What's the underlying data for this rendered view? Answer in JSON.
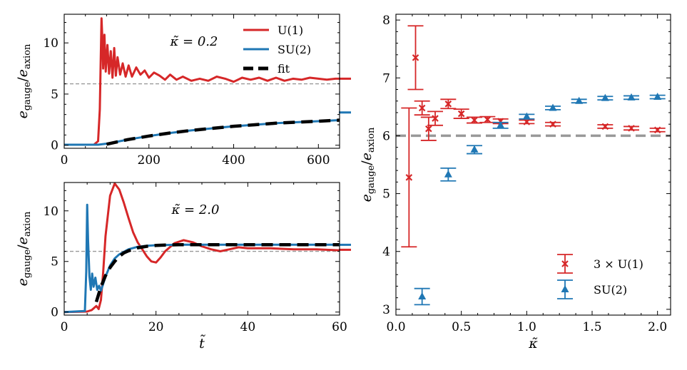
{
  "chart_data": [
    {
      "id": "top-left",
      "type": "line",
      "annotation": "κ̃ = 0.2",
      "xlabel": "",
      "ylabel": "e_gauge / e_axion",
      "xlim": [
        0,
        650
      ],
      "ylim": [
        -0.3,
        12.8
      ],
      "xticks": [
        0,
        200,
        400,
        600
      ],
      "yticks": [
        0,
        5,
        10
      ],
      "reference_line": 6,
      "legend": {
        "placement": "top-right",
        "entries": [
          "U(1)",
          "SU(2)",
          "fit"
        ]
      },
      "series": [
        {
          "name": "U(1)",
          "color": "#d62728",
          "x": [
            0,
            70,
            80,
            84,
            86,
            88,
            90,
            92,
            95,
            98,
            102,
            106,
            110,
            114,
            118,
            122,
            126,
            132,
            138,
            145,
            152,
            160,
            170,
            180,
            190,
            200,
            212,
            225,
            238,
            250,
            265,
            280,
            300,
            320,
            340,
            360,
            380,
            400,
            420,
            440,
            460,
            480,
            500,
            520,
            540,
            560,
            580,
            600,
            620,
            640,
            650
          ],
          "y": [
            0.05,
            0.05,
            0.4,
            3.5,
            8.0,
            12.4,
            10.5,
            7.5,
            10.8,
            7.2,
            9.8,
            7.0,
            9.2,
            6.6,
            9.5,
            6.8,
            8.6,
            6.9,
            8.0,
            6.7,
            7.8,
            6.7,
            7.6,
            6.9,
            7.3,
            6.6,
            7.1,
            6.8,
            6.4,
            6.9,
            6.4,
            6.7,
            6.3,
            6.5,
            6.3,
            6.7,
            6.5,
            6.2,
            6.6,
            6.4,
            6.6,
            6.3,
            6.6,
            6.3,
            6.5,
            6.4,
            6.6,
            6.5,
            6.4,
            6.5,
            6.5
          ]
        },
        {
          "name": "SU(2)",
          "color": "#1f77b4",
          "x": [
            0,
            80,
            100,
            120,
            150,
            200,
            250,
            300,
            350,
            400,
            450,
            500,
            550,
            600,
            650
          ],
          "y": [
            0.05,
            0.05,
            0.15,
            0.3,
            0.55,
            0.9,
            1.2,
            1.45,
            1.65,
            1.85,
            2.0,
            2.15,
            2.25,
            2.35,
            2.45
          ]
        },
        {
          "name": "fit",
          "color": "#000000",
          "x": [
            100,
            120,
            150,
            200,
            250,
            300,
            350,
            400,
            450,
            500,
            550,
            600,
            650
          ],
          "y": [
            0.1,
            0.28,
            0.55,
            0.9,
            1.2,
            1.45,
            1.65,
            1.85,
            2.0,
            2.15,
            2.25,
            2.35,
            2.45
          ]
        }
      ],
      "edge_markers": [
        {
          "series": "U(1)",
          "y": 6.5
        },
        {
          "series": "SU(2)",
          "y": 3.2
        }
      ]
    },
    {
      "id": "bottom-left",
      "type": "line",
      "annotation": "κ̃ = 2.0",
      "xlabel": "t̃",
      "ylabel": "e_gauge / e_axion",
      "xlim": [
        0,
        60
      ],
      "ylim": [
        -0.3,
        12.8
      ],
      "xticks": [
        0,
        20,
        40,
        60
      ],
      "yticks": [
        0,
        5,
        10
      ],
      "reference_line": 6,
      "series": [
        {
          "name": "U(1)",
          "color": "#d62728",
          "x": [
            0,
            5,
            6,
            7,
            7.5,
            8,
            8.5,
            9,
            10,
            11,
            12,
            13,
            14,
            15,
            16,
            17,
            18,
            19,
            20,
            21,
            22,
            24,
            26,
            28,
            30,
            32,
            34,
            36,
            38,
            40,
            45,
            50,
            55,
            60
          ],
          "y": [
            0,
            0.05,
            0.2,
            0.6,
            0.3,
            1.2,
            4.0,
            7.5,
            11.5,
            12.7,
            12.1,
            10.8,
            9.3,
            7.9,
            6.9,
            6.2,
            5.5,
            5.0,
            4.9,
            5.4,
            6.0,
            6.8,
            7.1,
            6.9,
            6.5,
            6.2,
            6.0,
            6.2,
            6.4,
            6.3,
            6.3,
            6.2,
            6.2,
            6.1
          ]
        },
        {
          "name": "SU(2)",
          "color": "#1f77b4",
          "x": [
            0,
            4.5,
            4.8,
            5.0,
            5.2,
            5.5,
            5.8,
            6.1,
            6.4,
            6.8,
            7.2,
            7.6,
            8.0,
            8.5,
            9,
            10,
            11,
            12,
            14,
            16,
            18,
            20,
            25,
            30,
            40,
            50,
            60
          ],
          "y": [
            0,
            0.1,
            4.0,
            10.6,
            7.0,
            3.5,
            2.2,
            3.8,
            2.5,
            3.4,
            2.2,
            2.6,
            2.1,
            2.8,
            3.5,
            4.6,
            5.3,
            5.7,
            6.2,
            6.45,
            6.55,
            6.6,
            6.65,
            6.65,
            6.65,
            6.65,
            6.65
          ]
        },
        {
          "name": "fit",
          "color": "#000000",
          "x": [
            7,
            8,
            9,
            10,
            11,
            12,
            13,
            14,
            16,
            18,
            20,
            22,
            25,
            30,
            40,
            50,
            60
          ],
          "y": [
            1.0,
            2.5,
            3.6,
            4.4,
            5.0,
            5.5,
            5.85,
            6.05,
            6.35,
            6.5,
            6.58,
            6.62,
            6.65,
            6.65,
            6.65,
            6.65,
            6.65
          ]
        }
      ],
      "edge_markers": [
        {
          "series": "SU(2)",
          "y": 6.65
        },
        {
          "series": "U(1)",
          "y": 6.15
        }
      ]
    },
    {
      "id": "right",
      "type": "scatter",
      "xlabel": "κ̃",
      "ylabel": "e_gauge / e_axion",
      "xlim": [
        0,
        2.1
      ],
      "ylim": [
        2.9,
        8.1
      ],
      "xticks": [
        "0.0",
        "0.5",
        "1.0",
        "1.5",
        "2.0"
      ],
      "yticks": [
        3,
        4,
        5,
        6,
        7,
        8
      ],
      "reference_line": 6,
      "legend": {
        "placement": "bottom-right",
        "entries": [
          "3 × U(1)",
          "SU(2)"
        ]
      },
      "series": [
        {
          "name": "3 × U(1)",
          "color": "#d62728",
          "marker": "x",
          "x": [
            0.1,
            0.15,
            0.2,
            0.25,
            0.3,
            0.4,
            0.5,
            0.6,
            0.7,
            0.8,
            1.0,
            1.2,
            1.6,
            1.8,
            2.0
          ],
          "y": [
            5.28,
            7.35,
            6.48,
            6.12,
            6.3,
            6.55,
            6.38,
            6.27,
            6.28,
            6.25,
            6.24,
            6.2,
            6.16,
            6.13,
            6.1
          ],
          "err": [
            1.2,
            0.55,
            0.12,
            0.2,
            0.12,
            0.08,
            0.08,
            0.05,
            0.05,
            0.04,
            0.03,
            0.03,
            0.03,
            0.03,
            0.03
          ]
        },
        {
          "name": "SU(2)",
          "color": "#1f77b4",
          "marker": "^",
          "x": [
            0.2,
            0.4,
            0.6,
            0.8,
            1.0,
            1.2,
            1.4,
            1.6,
            1.8,
            2.0
          ],
          "y": [
            3.22,
            5.33,
            5.76,
            6.18,
            6.33,
            6.48,
            6.6,
            6.65,
            6.66,
            6.67
          ],
          "err": [
            0.14,
            0.11,
            0.07,
            0.05,
            0.04,
            0.03,
            0.03,
            0.03,
            0.03,
            0.03
          ]
        }
      ]
    }
  ]
}
